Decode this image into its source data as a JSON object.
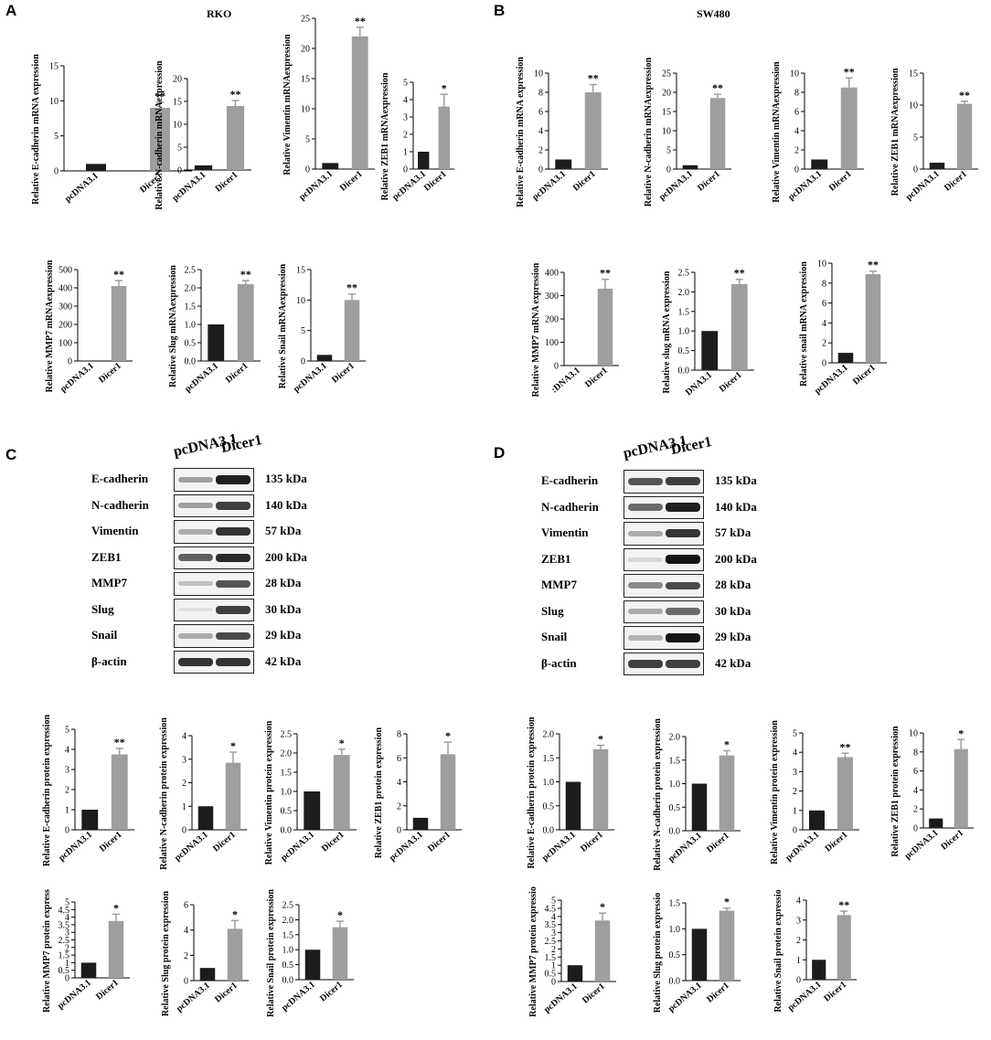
{
  "panels": {
    "A": {
      "letter": "A",
      "title": "RKO"
    },
    "B": {
      "letter": "B",
      "title": "SW480"
    },
    "C": {
      "letter": "C"
    },
    "D": {
      "letter": "D"
    }
  },
  "blots": {
    "C": {
      "headers": [
        "pcDNA3.1",
        "Dicer1"
      ],
      "rows": [
        {
          "protein": "E-cadherin",
          "kda": "135 kDa",
          "intensity": [
            0.35,
            0.95
          ]
        },
        {
          "protein": "N-cadherin",
          "kda": "140 kDa",
          "intensity": [
            0.35,
            0.8
          ]
        },
        {
          "protein": "Vimentin",
          "kda": "57 kDa",
          "intensity": [
            0.3,
            0.85
          ]
        },
        {
          "protein": "ZEB1",
          "kda": "200 kDa",
          "intensity": [
            0.65,
            0.9
          ]
        },
        {
          "protein": "MMP7",
          "kda": "28 kDa",
          "intensity": [
            0.2,
            0.7
          ]
        },
        {
          "protein": "Slug",
          "kda": "30 kDa",
          "intensity": [
            0.05,
            0.8
          ]
        },
        {
          "protein": "Snail",
          "kda": "29 kDa",
          "intensity": [
            0.3,
            0.75
          ]
        },
        {
          "protein": "β-actin",
          "kda": "42 kDa",
          "intensity": [
            0.85,
            0.85
          ]
        }
      ]
    },
    "D": {
      "headers": [
        "pcDNA3.1",
        "Dicer1"
      ],
      "rows": [
        {
          "protein": "E-cadherin",
          "kda": "135 kDa",
          "intensity": [
            0.7,
            0.8
          ]
        },
        {
          "protein": "N-cadherin",
          "kda": "140 kDa",
          "intensity": [
            0.6,
            0.95
          ]
        },
        {
          "protein": "Vimentin",
          "kda": "57 kDa",
          "intensity": [
            0.3,
            0.85
          ]
        },
        {
          "protein": "ZEB1",
          "kda": "200 kDa",
          "intensity": [
            0.1,
            1.0
          ]
        },
        {
          "protein": "MMP7",
          "kda": "28 kDa",
          "intensity": [
            0.45,
            0.75
          ]
        },
        {
          "protein": "Slug",
          "kda": "30 kDa",
          "intensity": [
            0.3,
            0.6
          ]
        },
        {
          "protein": "Snail",
          "kda": "29 kDa",
          "intensity": [
            0.25,
            1.0
          ]
        },
        {
          "protein": "β-actin",
          "kda": "42 kDa",
          "intensity": [
            0.8,
            0.8
          ]
        }
      ]
    }
  },
  "colors": {
    "pcDNA3.1": "#1c1c1c",
    "Dicer1": "#9e9e9e"
  },
  "chart_data": [
    {
      "id": "A1",
      "type": "bar",
      "categories": [
        "pcDNA3.1",
        "Dicer1"
      ],
      "values": [
        1,
        9
      ],
      "errors": [
        0,
        0.8
      ],
      "sig": "**",
      "ylabel": "Relative  E-cadherin mRNA expression",
      "ylim": [
        0,
        15
      ],
      "yticks": [
        0,
        5,
        10,
        15
      ]
    },
    {
      "id": "A2",
      "type": "bar",
      "categories": [
        "pcDNA3.1",
        "Dicer1"
      ],
      "values": [
        1,
        14
      ],
      "errors": [
        0,
        1.2
      ],
      "sig": "**",
      "ylabel": "Relative N-cadherin mRNAexpression",
      "ylim": [
        0,
        20
      ],
      "yticks": [
        0,
        5,
        10,
        15,
        20
      ]
    },
    {
      "id": "A3",
      "type": "bar",
      "categories": [
        "pcDNA3.1",
        "Dicer1"
      ],
      "values": [
        1,
        22
      ],
      "errors": [
        0,
        1.5
      ],
      "sig": "**",
      "ylabel": "Relative Vimentin mRNAexpression",
      "ylim": [
        0,
        25
      ],
      "yticks": [
        0,
        5,
        10,
        15,
        20,
        25
      ]
    },
    {
      "id": "A4",
      "type": "bar",
      "categories": [
        "pcDNA3.1",
        "Dicer1"
      ],
      "values": [
        1,
        3.6
      ],
      "errors": [
        0,
        0.7
      ],
      "sig": "*",
      "ylabel": "Relative ZEB1 mRNAexpression",
      "ylim": [
        0,
        5
      ],
      "yticks": [
        0,
        1,
        2,
        3,
        4,
        5
      ]
    },
    {
      "id": "A5",
      "type": "bar",
      "categories": [
        "pcDNA3.1",
        "Dicer1"
      ],
      "values": [
        1,
        410
      ],
      "errors": [
        0,
        30
      ],
      "sig": "**",
      "ylabel": "Relative MMP7 mRNAexpression",
      "ylim": [
        0,
        500
      ],
      "yticks": [
        0,
        100,
        200,
        300,
        400,
        500
      ]
    },
    {
      "id": "A6",
      "type": "bar",
      "categories": [
        "pcDNA3.1",
        "Dicer1"
      ],
      "values": [
        1,
        2.1
      ],
      "errors": [
        0,
        0.1
      ],
      "sig": "**",
      "ylabel": "Relative Slug mRNAexpression",
      "ylim": [
        0,
        2.5
      ],
      "yticks": [
        0,
        0.5,
        1.0,
        1.5,
        2.0,
        2.5
      ],
      "tickdec": 1
    },
    {
      "id": "A7",
      "type": "bar",
      "categories": [
        "pcDNA3.1",
        "Dicer1"
      ],
      "values": [
        1,
        10
      ],
      "errors": [
        0,
        1
      ],
      "sig": "**",
      "ylabel": "Relative Snail mRNAexpression",
      "ylim": [
        0,
        15
      ],
      "yticks": [
        0,
        5,
        10,
        15
      ]
    },
    {
      "id": "B1",
      "type": "bar",
      "categories": [
        "pcDNA3.1",
        "Dicer1"
      ],
      "values": [
        1,
        8
      ],
      "errors": [
        0,
        0.8
      ],
      "sig": "**",
      "ylabel": "Relative  E-cadherin mRNA expression",
      "ylim": [
        0,
        10
      ],
      "yticks": [
        0,
        2,
        4,
        6,
        8,
        10
      ]
    },
    {
      "id": "B2",
      "type": "bar",
      "categories": [
        "pcDNA3.1",
        "Dicer1"
      ],
      "values": [
        1,
        18.5
      ],
      "errors": [
        0,
        1
      ],
      "sig": "**",
      "ylabel": "Relative N-cadherin mRNAexpression",
      "ylim": [
        0,
        25
      ],
      "yticks": [
        0,
        5,
        10,
        15,
        20,
        25
      ]
    },
    {
      "id": "B3",
      "type": "bar",
      "categories": [
        "pcDNA3.1",
        "Dicer1"
      ],
      "values": [
        1,
        8.5
      ],
      "errors": [
        0,
        1
      ],
      "sig": "**",
      "ylabel": "Relative Vimentin mRNAexpression",
      "ylim": [
        0,
        10
      ],
      "yticks": [
        0,
        2,
        4,
        6,
        8,
        10
      ]
    },
    {
      "id": "B4",
      "type": "bar",
      "categories": [
        "pcDNA3.1",
        "Dicer1"
      ],
      "values": [
        1,
        10.2
      ],
      "errors": [
        0,
        0.4
      ],
      "sig": "**",
      "ylabel": "Relative ZEB1 mRNAexpression",
      "ylim": [
        0,
        15
      ],
      "yticks": [
        0,
        5,
        10,
        15
      ]
    },
    {
      "id": "B5",
      "type": "bar",
      "categories": [
        ":DNA3.1",
        "Dicer1"
      ],
      "values": [
        1,
        330
      ],
      "errors": [
        0,
        40
      ],
      "sig": "**",
      "ylabel": "Relative MMP7 mRNA  expression",
      "ylim": [
        0,
        400
      ],
      "yticks": [
        0,
        100,
        200,
        300,
        400
      ]
    },
    {
      "id": "B6",
      "type": "bar",
      "categories": [
        "DNA3.1",
        "Dicer1"
      ],
      "values": [
        1,
        2.2
      ],
      "errors": [
        0,
        0.12
      ],
      "sig": "**",
      "ylabel": "Relative slug mRNA expression",
      "ylim": [
        0,
        2.5
      ],
      "yticks": [
        0,
        0.5,
        1.0,
        1.5,
        2.0,
        2.5
      ],
      "tickdec": 1
    },
    {
      "id": "B7",
      "type": "bar",
      "categories": [
        "pcDNA3.1",
        "Dicer1"
      ],
      "values": [
        1,
        8.9
      ],
      "errors": [
        0,
        0.3
      ],
      "sig": "**",
      "ylabel": "Relative snail mRNA expression",
      "ylim": [
        0,
        10
      ],
      "yticks": [
        0,
        2,
        4,
        6,
        8,
        10
      ]
    },
    {
      "id": "C1",
      "type": "bar",
      "categories": [
        "pcDNA3.1",
        "Dicer1"
      ],
      "values": [
        1,
        3.75
      ],
      "errors": [
        0,
        0.3
      ],
      "sig": "**",
      "ylabel": "Relative E-cadherin protein expression",
      "ylim": [
        0,
        5
      ],
      "yticks": [
        0,
        1,
        2,
        3,
        4,
        5
      ]
    },
    {
      "id": "C2",
      "type": "bar",
      "categories": [
        "pcDNA3.1",
        "Dicer1"
      ],
      "values": [
        1,
        2.85
      ],
      "errors": [
        0,
        0.45
      ],
      "sig": "*",
      "ylabel": "Relative N-cadherin protein expression",
      "ylim": [
        0,
        4
      ],
      "yticks": [
        0,
        1,
        2,
        3,
        4
      ]
    },
    {
      "id": "C3",
      "type": "bar",
      "categories": [
        "pcDNA3.1",
        "Dicer1"
      ],
      "values": [
        1,
        1.95
      ],
      "errors": [
        0,
        0.15
      ],
      "sig": "*",
      "ylabel": "Relative Vimentin protein expression",
      "ylim": [
        0,
        2.5
      ],
      "yticks": [
        0,
        0.5,
        1.0,
        1.5,
        2.0,
        2.5
      ],
      "tickdec": 1
    },
    {
      "id": "C4",
      "type": "bar",
      "categories": [
        "pcDNA3.1",
        "Dicer1"
      ],
      "values": [
        1,
        6.3
      ],
      "errors": [
        0,
        1
      ],
      "sig": "*",
      "ylabel": "Relative ZEB1 protein expression",
      "ylim": [
        0,
        8
      ],
      "yticks": [
        0,
        2,
        4,
        6,
        8
      ]
    },
    {
      "id": "C5",
      "type": "bar",
      "categories": [
        "pcDNA3.1",
        "Dicer1"
      ],
      "values": [
        1,
        3.75
      ],
      "errors": [
        0,
        0.45
      ],
      "sig": "*",
      "ylabel": "Relative MMP7 protein express",
      "ylim": [
        0,
        5
      ],
      "yticks": [
        0,
        0.5,
        1,
        1.5,
        2,
        2.5,
        3,
        3.5,
        4,
        4.5,
        5
      ]
    },
    {
      "id": "C6",
      "type": "bar",
      "categories": [
        "pcDNA3.1",
        "Dicer1"
      ],
      "values": [
        1,
        4.1
      ],
      "errors": [
        0,
        0.65
      ],
      "sig": "*",
      "ylabel": "Relative Slug protein expression",
      "ylim": [
        0,
        6
      ],
      "yticks": [
        0,
        2,
        4,
        6
      ]
    },
    {
      "id": "C7",
      "type": "bar",
      "categories": [
        "pcDNA3.1",
        "Dicer1"
      ],
      "values": [
        1,
        1.75
      ],
      "errors": [
        0,
        0.2
      ],
      "sig": "*",
      "ylabel": "Relative Snail protein expression",
      "ylim": [
        0,
        2.5
      ],
      "yticks": [
        0,
        0.5,
        1.0,
        1.5,
        2.0,
        2.5
      ],
      "tickdec": 1
    },
    {
      "id": "D1",
      "type": "bar",
      "categories": [
        "pcDNA3.1",
        "Dicer1"
      ],
      "values": [
        1,
        1.68
      ],
      "errors": [
        0,
        0.08
      ],
      "sig": "*",
      "ylabel": "Relative E-cadherin protein expression",
      "ylim": [
        0,
        2.0
      ],
      "yticks": [
        0,
        0.5,
        1.0,
        1.5,
        2.0
      ],
      "tickdec": 1
    },
    {
      "id": "D2",
      "type": "bar",
      "categories": [
        "pcDNA3.1",
        "Dicer1"
      ],
      "values": [
        1,
        1.6
      ],
      "errors": [
        0,
        0.1
      ],
      "sig": "*",
      "ylabel": "Relative N-cadherin protein expression",
      "ylim": [
        0,
        2.0
      ],
      "yticks": [
        0,
        0.5,
        1.0,
        1.5,
        2.0
      ],
      "tickdec": 1
    },
    {
      "id": "D3",
      "type": "bar",
      "categories": [
        "pcDNA3.1",
        "Dicer1"
      ],
      "values": [
        1,
        3.75
      ],
      "errors": [
        0,
        0.2
      ],
      "sig": "**",
      "ylabel": "Relative Vimentin protein expression",
      "ylim": [
        0,
        5
      ],
      "yticks": [
        0,
        1,
        2,
        3,
        4,
        5
      ]
    },
    {
      "id": "D4",
      "type": "bar",
      "categories": [
        "pcDNA3.1",
        "Dicer1"
      ],
      "values": [
        1,
        8.3
      ],
      "errors": [
        0,
        1
      ],
      "sig": "*",
      "ylabel": "Relative ZEB1 protein expression",
      "ylim": [
        0,
        10
      ],
      "yticks": [
        0,
        2,
        4,
        6,
        8,
        10
      ]
    },
    {
      "id": "D5",
      "type": "bar",
      "categories": [
        "pcDNA3.1",
        "Dicer1"
      ],
      "values": [
        1,
        3.75
      ],
      "errors": [
        0,
        0.45
      ],
      "sig": "*",
      "ylabel": "Relative MMP7 protein expressio",
      "ylim": [
        0,
        5
      ],
      "yticks": [
        0,
        0.5,
        1,
        1.5,
        2,
        2.5,
        3,
        3.5,
        4,
        4.5,
        5
      ]
    },
    {
      "id": "D6",
      "type": "bar",
      "categories": [
        "pcDNA3.1",
        "Dicer1"
      ],
      "values": [
        1,
        1.35
      ],
      "errors": [
        0,
        0.05
      ],
      "sig": "*",
      "ylabel": "Relative Slug protein expressio",
      "ylim": [
        0,
        1.5
      ],
      "yticks": [
        0,
        0.5,
        1.0,
        1.5
      ],
      "tickdec": 1
    },
    {
      "id": "D7",
      "type": "bar",
      "categories": [
        "pcDNA3.1",
        "Dicer1"
      ],
      "values": [
        1,
        3.25
      ],
      "errors": [
        0,
        0.2
      ],
      "sig": "**",
      "ylabel": "Relative Snail protein expressio",
      "ylim": [
        0,
        4
      ],
      "yticks": [
        0,
        1,
        2,
        3,
        4
      ]
    }
  ]
}
